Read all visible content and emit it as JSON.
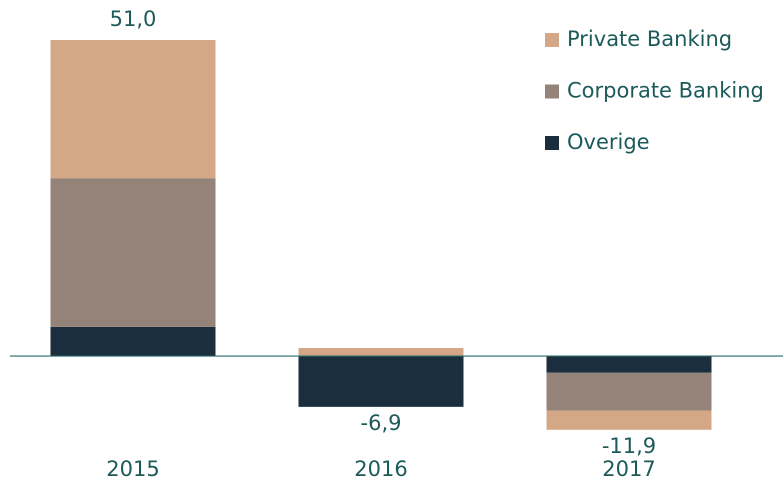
{
  "chart_data": {
    "type": "stacked-bar",
    "categories": [
      "2015",
      "2016",
      "2017"
    ],
    "series": [
      {
        "name": "Private Banking",
        "color": "#d4a886",
        "values": [
          22.3,
          1.3,
          -3.1
        ]
      },
      {
        "name": "Corporate Banking",
        "color": "#948379",
        "values": [
          24.0,
          0,
          -6.1
        ]
      },
      {
        "name": "Overige",
        "color": "#1b2e3e",
        "values": [
          4.7,
          -8.2,
          -2.7
        ]
      }
    ],
    "totals": [
      51.0,
      -6.9,
      -11.9
    ],
    "total_labels": [
      "51,0",
      "-6,9",
      "-11,9"
    ],
    "ylim": [
      -13,
      53
    ]
  }
}
